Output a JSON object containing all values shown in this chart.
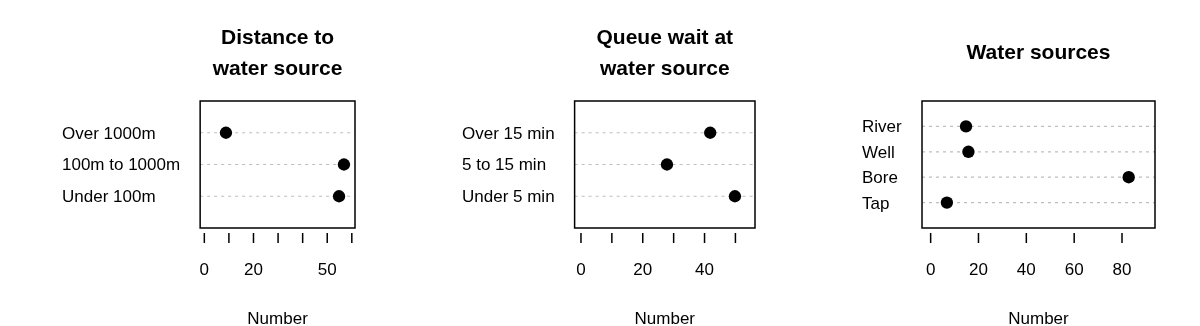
{
  "chart_data": [
    {
      "type": "scatter",
      "orientation": "horizontal",
      "title": "Distance to\nwater source",
      "categories": [
        "Over 1000m",
        "100m to 1000m",
        "Under 100m"
      ],
      "values": [
        9,
        57,
        55
      ],
      "color": "#000000",
      "marker": "circle",
      "grid": "y",
      "xlabel": "Number",
      "xlim": [
        -1.5,
        61.5
      ],
      "xticks": [
        0,
        {
          "value": 10,
          "label": null
        },
        20,
        {
          "value": 30,
          "label": null
        },
        {
          "value": 40,
          "label": null
        },
        50,
        {
          "value": 60,
          "label": null
        }
      ]
    },
    {
      "type": "scatter",
      "orientation": "horizontal",
      "title": "Queue wait at\nwater source",
      "categories": [
        "Over 15 min",
        "5 to 15 min",
        "Under 5 min"
      ],
      "values": [
        42,
        28,
        50
      ],
      "color": "#000000",
      "marker": "circle",
      "grid": "y",
      "xlabel": "Number",
      "xlim": [
        -1.9,
        56.5
      ],
      "xticks": [
        0,
        {
          "value": 10,
          "label": null
        },
        20,
        {
          "value": 30,
          "label": null
        },
        40,
        {
          "value": 50,
          "label": null
        }
      ]
    },
    {
      "type": "scatter",
      "orientation": "horizontal",
      "title": "Water sources",
      "categories": [
        "River",
        "Well",
        "Bore",
        "Tap"
      ],
      "values": [
        15,
        16,
        83,
        7
      ],
      "color": "#000000",
      "marker": "circle",
      "grid": "y",
      "xlabel": "Number",
      "xlim": [
        -3.4,
        94
      ],
      "xticks": [
        0,
        20,
        40,
        60,
        80
      ]
    }
  ]
}
